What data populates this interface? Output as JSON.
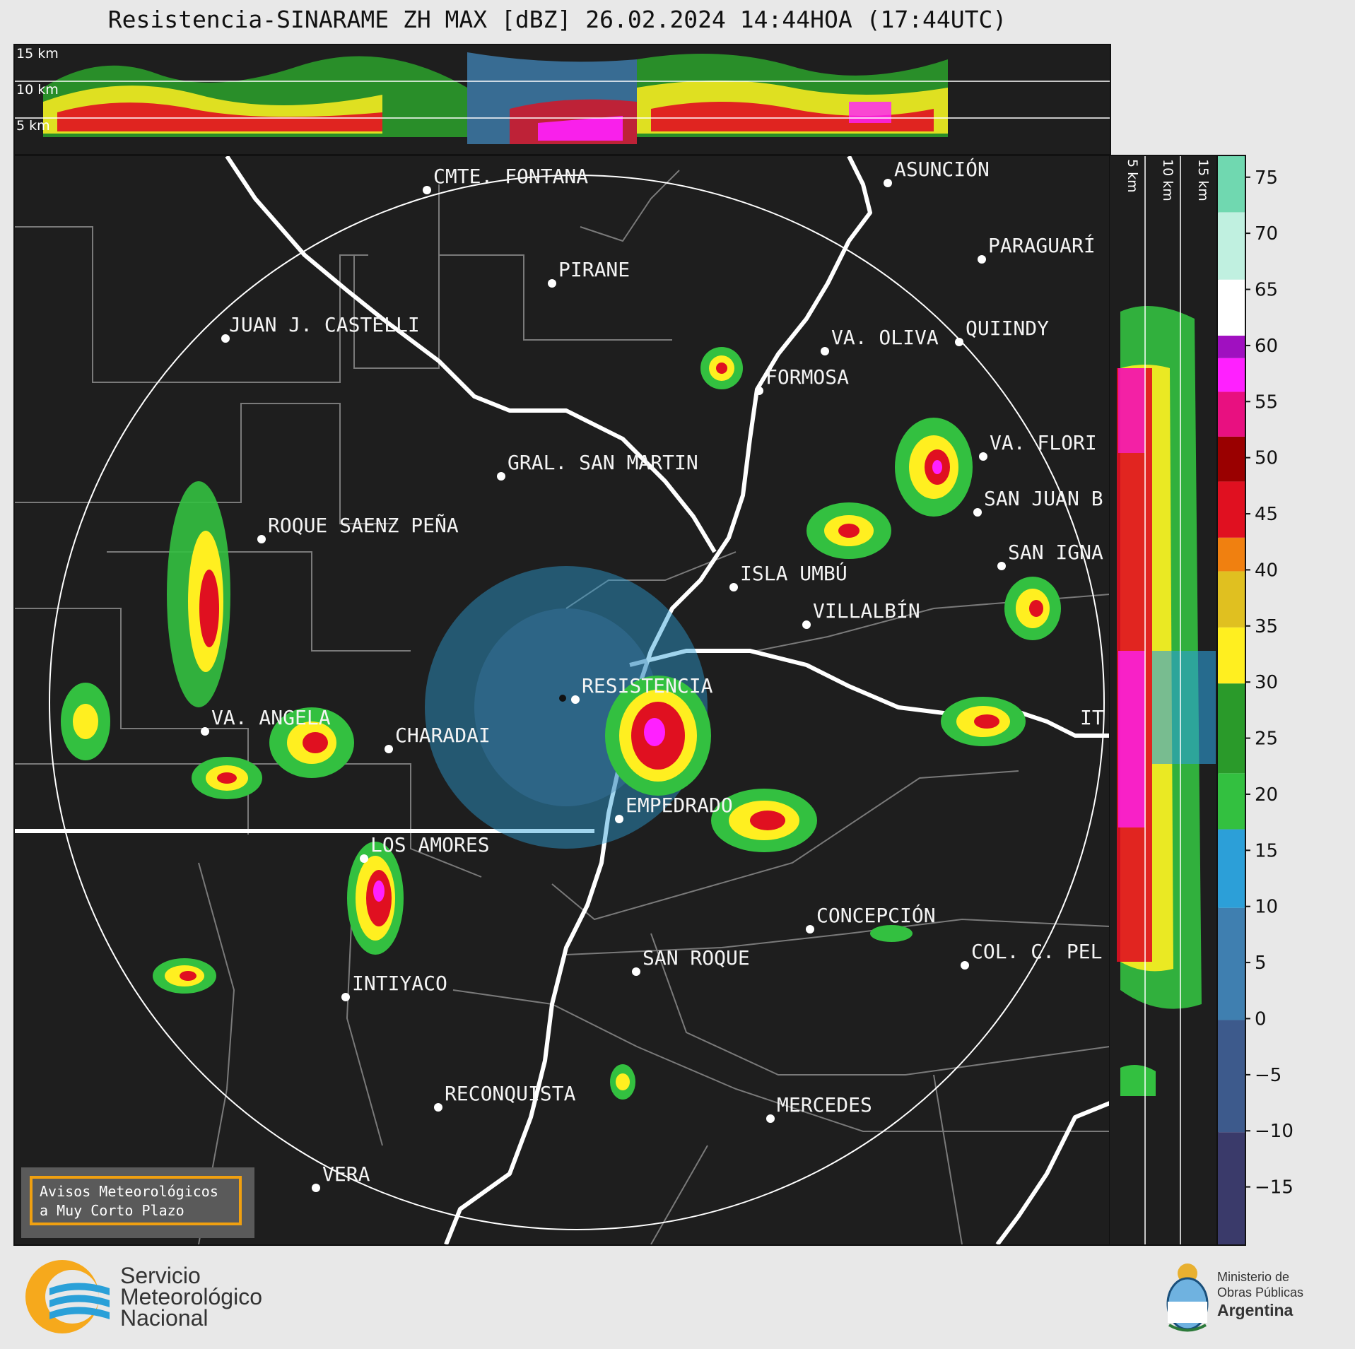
{
  "header": {
    "title": "Resistencia-SINARAME ZH MAX [dBZ] 26.02.2024 14:44HOA (17:44UTC)"
  },
  "top_panel": {
    "altitude_labels": [
      "15 km",
      "10 km",
      "5 km"
    ]
  },
  "side_panel": {
    "altitude_labels": [
      "5 km",
      "10 km",
      "15 km"
    ]
  },
  "colorbar": {
    "unit": "dBZ",
    "ticks": [
      "75",
      "70",
      "65",
      "60",
      "55",
      "50",
      "45",
      "40",
      "35",
      "30",
      "25",
      "20",
      "15",
      "10",
      "5",
      "0",
      "−5",
      "−10",
      "−15"
    ],
    "tick_values": [
      75,
      70,
      65,
      60,
      55,
      50,
      45,
      40,
      35,
      30,
      25,
      20,
      15,
      10,
      5,
      0,
      -5,
      -10,
      -15
    ],
    "range": [
      -20,
      77
    ],
    "colors": [
      "#3a3a6a",
      "#3d5a8c",
      "#3f7fb0",
      "#2c9fd8",
      "#33c040",
      "#2a9a2a",
      "#ffef20",
      "#e0c020",
      "#f08010",
      "#e01020",
      "#9a0000",
      "#e81080",
      "#ff20ff",
      "#a010c0",
      "#ffffff",
      "#c0f0e0",
      "#70d8b0"
    ]
  },
  "map": {
    "cities": [
      {
        "name": "CMTE. FONTANA"
      },
      {
        "name": "PIRANE"
      },
      {
        "name": "JUAN J. CASTELLI"
      },
      {
        "name": "ASUNCIÓN"
      },
      {
        "name": "PARAGUARÍ"
      },
      {
        "name": "VA. OLIVA"
      },
      {
        "name": "QUIINDY"
      },
      {
        "name": "FORMOSA"
      },
      {
        "name": "VA. FLORI"
      },
      {
        "name": "GRAL. SAN MARTIN"
      },
      {
        "name": "SAN JUAN B"
      },
      {
        "name": "ROQUE SAENZ PEÑA"
      },
      {
        "name": "SAN IGNA"
      },
      {
        "name": "ISLA UMBÚ"
      },
      {
        "name": "VILLALBÍN"
      },
      {
        "name": "RESISTENCIA"
      },
      {
        "name": "VA. ANGELA"
      },
      {
        "name": "CHARADAI"
      },
      {
        "name": "IT"
      },
      {
        "name": "EMPEDRADO"
      },
      {
        "name": "LOS AMORES"
      },
      {
        "name": "CONCEPCIÓN"
      },
      {
        "name": "SAN ROQUE"
      },
      {
        "name": "COL. C. PEL"
      },
      {
        "name": "INTIYACO"
      },
      {
        "name": "RECONQUISTA"
      },
      {
        "name": "MERCEDES"
      },
      {
        "name": "VERA"
      }
    ]
  },
  "alerts_box": {
    "line1": "Avisos Meteorológicos",
    "line2": "a Muy Corto Plazo"
  },
  "footer": {
    "smn_line1": "Servicio",
    "smn_line2": "Meteorológico",
    "smn_line3": "Nacional",
    "ministry_line1": "Ministerio de",
    "ministry_line2": "Obras Públicas",
    "ministry_line3": "Argentina"
  }
}
